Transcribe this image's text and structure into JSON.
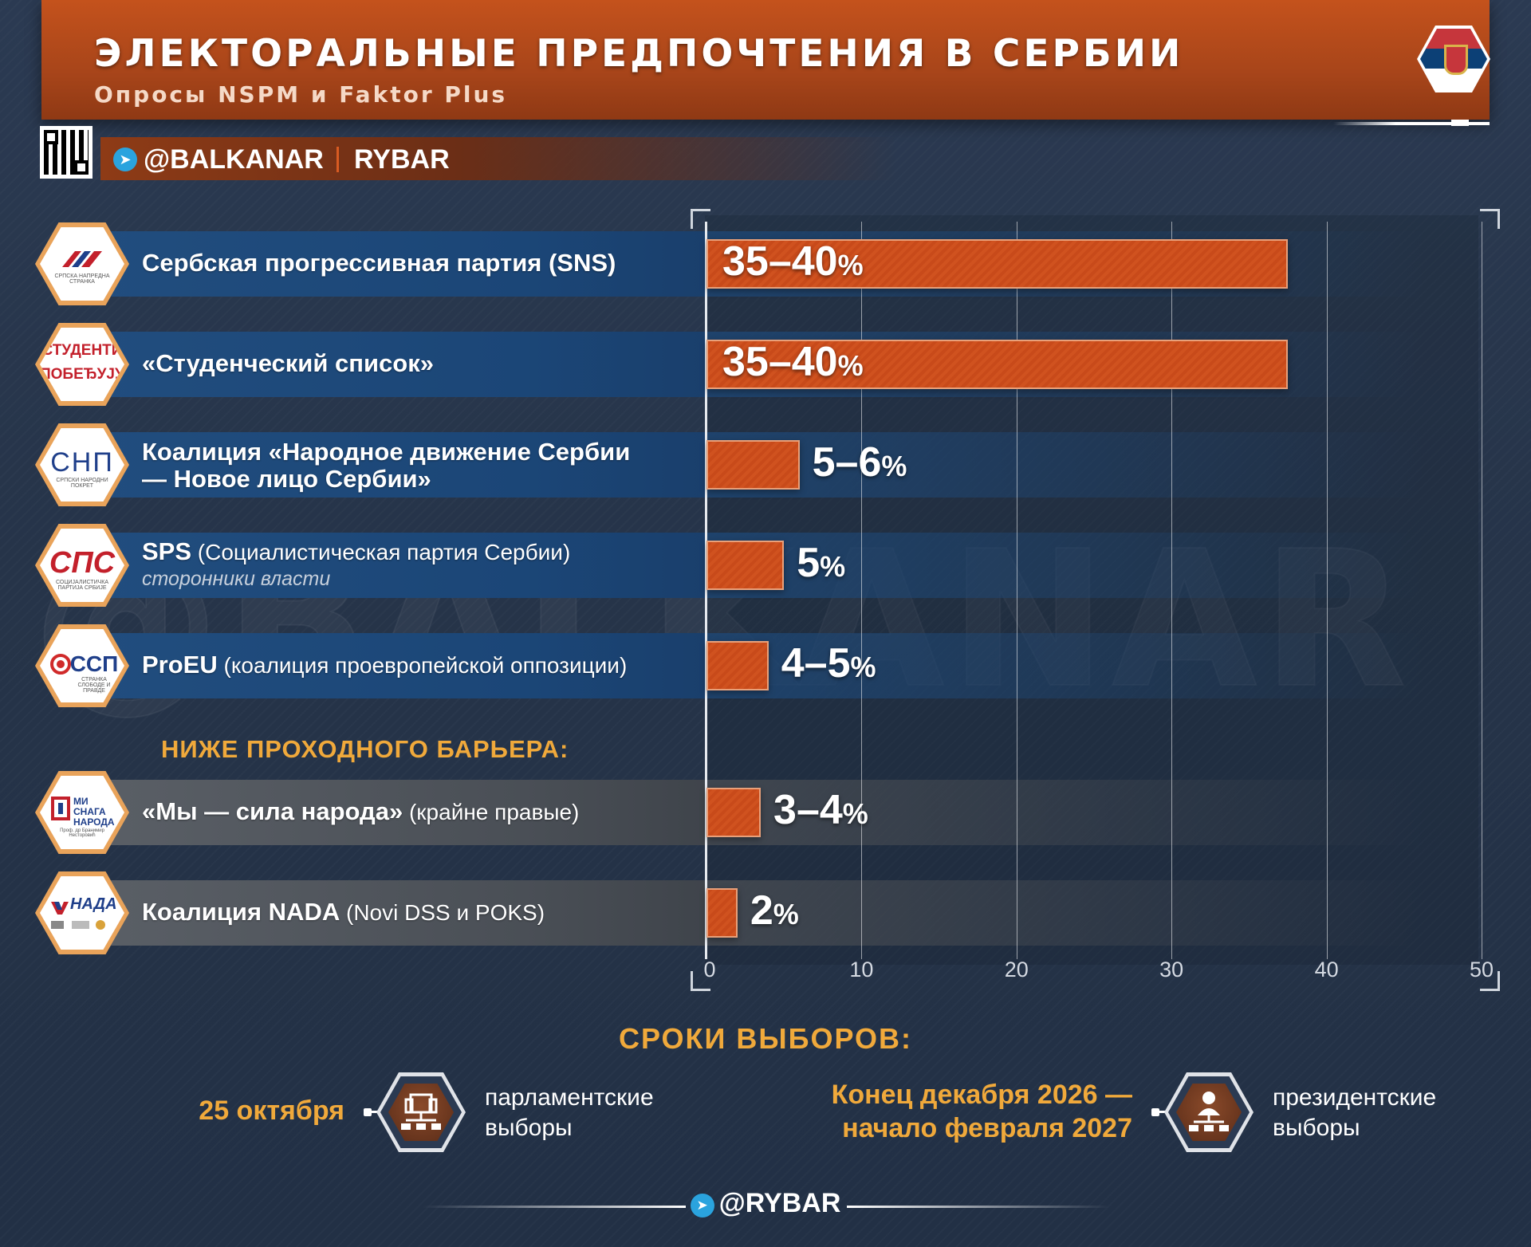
{
  "header": {
    "title": "ЭЛЕКТОРАЛЬНЫЕ ПРЕДПОЧТЕНИЯ В СЕРБИИ",
    "subtitle": "Опросы NSPM и Faktor Plus"
  },
  "branding": {
    "channel": "@BALKANAR",
    "brand": "RYBAR",
    "watermark": "@BALKANAR",
    "footer": "@RYBAR"
  },
  "chart_data": {
    "type": "bar",
    "orientation": "horizontal",
    "xlim": [
      0,
      50
    ],
    "xticks": [
      "0",
      "10",
      "20",
      "30",
      "40",
      "50"
    ],
    "grid": true,
    "categories": [
      "Сербская прогрессивная партия (SNS)",
      "«Студенческий список»",
      "Коалиция «Народное движение Сербии — Новое лицо Сербии»",
      "SPS (Социалистическая партия Сербии)",
      "ProEU (коалиция проевропейской оппозиции)",
      "«Мы — сила народа» (крайне правые)",
      "Коалиция NADA (Novi DSS и POKS)"
    ],
    "values": [
      37.5,
      37.5,
      6,
      5,
      4,
      3.5,
      2
    ],
    "value_labels": [
      "35–40",
      "35–40",
      "5–6",
      "5",
      "4–5",
      "3–4",
      "2"
    ],
    "percent_sign": "%"
  },
  "parties": [
    {
      "name": "Сербская прогрессивная партия (SNS)",
      "name_light": "",
      "note": "",
      "group": "above",
      "logo": {
        "main": "",
        "small": "СРПСКА НАПРЕДНА СТРАНКА"
      }
    },
    {
      "name": "«Студенческий список»",
      "name_light": "",
      "note": "",
      "group": "above",
      "logo": {
        "main": "СТУДЕНТИ",
        "second": "ПОБЕЂУЈУ!"
      }
    },
    {
      "name": "Коалиция «Народное движение Сербии",
      "name_line2": "— Новое лицо Сербии»",
      "name_light": "",
      "note": "",
      "group": "above",
      "logo": {
        "main": "СНП",
        "small": "СРПСКИ НАРОДНИ ПОКРЕТ"
      }
    },
    {
      "name": "SPS",
      "name_light": "(Социалистическая партия Сербии)",
      "note": "сторонники власти",
      "group": "above",
      "logo": {
        "main": "СПС",
        "small": "СОЦИЈАЛИСТИЧКА ПАРТИЈА СРБИЈЕ"
      }
    },
    {
      "name": "ProEU",
      "name_light": "(коалиция проевропейской оппозиции)",
      "note": "",
      "group": "above",
      "logo": {
        "main": "ССП",
        "small": "СТРАНКА СЛОБОДЕ И ПРАВДЕ"
      }
    },
    {
      "name": "«Мы — сила народа»",
      "name_light": "(крайне правые)",
      "note": "",
      "group": "below",
      "logo": {
        "main": "МИ СНАГА НАРОДА",
        "small": "Проф. др Бранимир Несторовић"
      }
    },
    {
      "name": "Коалиция NADA",
      "name_light": "(Novi DSS и POKS)",
      "note": "",
      "group": "below",
      "logo": {
        "main": "НАДА",
        "small": ""
      }
    }
  ],
  "below_threshold_label": "НИЖЕ ПРОХОДНОГО БАРЬЕРА:",
  "elections": {
    "title": "СРОКИ ВЫБОРОВ:",
    "items": [
      {
        "date": "25 октября",
        "type_line1": "парламентские",
        "type_line2": "выборы",
        "icon": "parliament-icon"
      },
      {
        "date_line1": "Конец декабря 2026 —",
        "date_line2": "начало февраля 2027",
        "type_line1": "президентские",
        "type_line2": "выборы",
        "icon": "president-icon"
      }
    ]
  },
  "colors": {
    "header": "#b14a1b",
    "bar": "#c84a1a",
    "accent_text": "#f0a93b",
    "row_blue": "#1d4878",
    "row_gray": "#50555c"
  }
}
